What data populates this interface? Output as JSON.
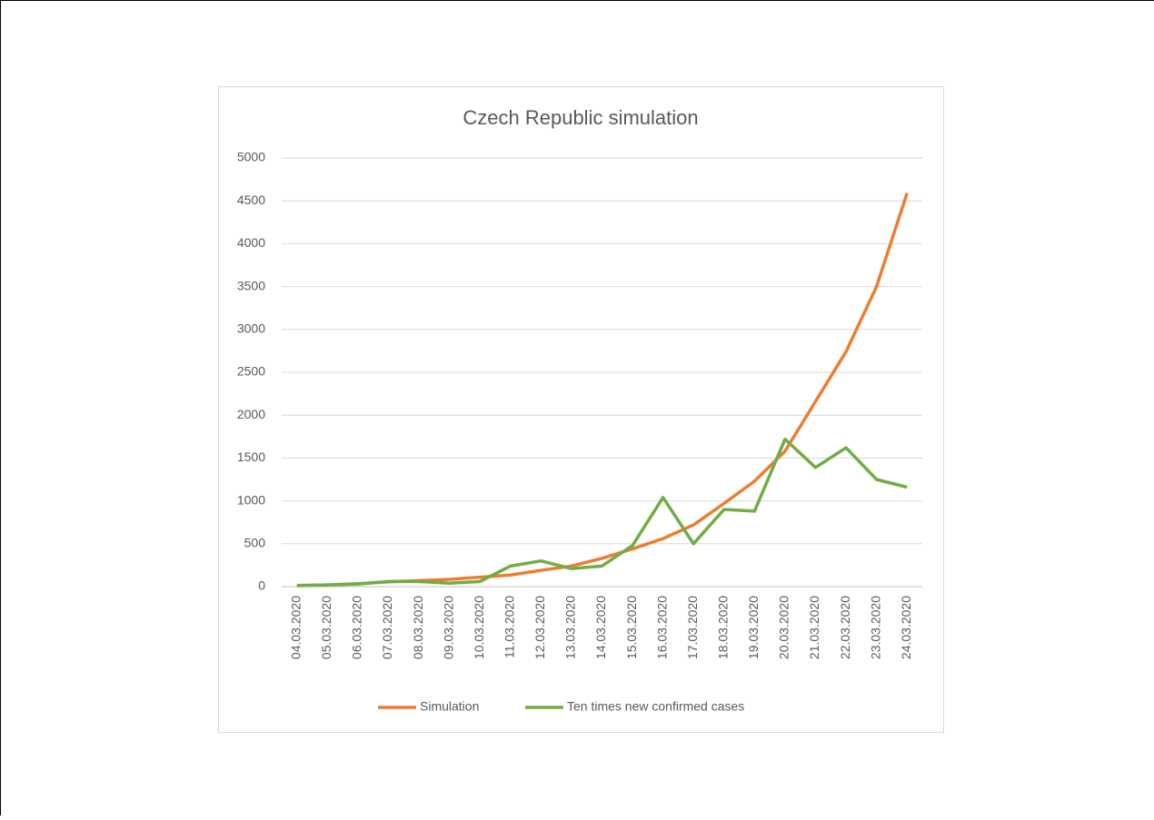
{
  "chart_data": {
    "type": "line",
    "title": "Czech Republic simulation",
    "categories": [
      "04.03.2020",
      "05.03.2020",
      "06.03.2020",
      "07.03.2020",
      "08.03.2020",
      "09.03.2020",
      "10.03.2020",
      "11.03.2020",
      "12.03.2020",
      "13.03.2020",
      "14.03.2020",
      "15.03.2020",
      "16.03.2020",
      "17.03.2020",
      "18.03.2020",
      "19.03.2020",
      "20.03.2020",
      "21.03.2020",
      "22.03.2020",
      "23.03.2020",
      "24.03.2020"
    ],
    "series": [
      {
        "name": "Simulation",
        "color": "#ed7d31",
        "values": [
          15,
          20,
          35,
          55,
          70,
          85,
          110,
          135,
          190,
          240,
          330,
          440,
          560,
          720,
          970,
          1230,
          1580,
          2160,
          2740,
          3500,
          4590
        ]
      },
      {
        "name": "Ten times new confirmed cases",
        "color": "#70ad47",
        "values": [
          10,
          20,
          30,
          60,
          60,
          40,
          60,
          240,
          300,
          210,
          240,
          480,
          1040,
          500,
          900,
          880,
          1720,
          1390,
          1620,
          1250,
          1160
        ]
      }
    ],
    "ylim": [
      0,
      5000
    ],
    "yticks": [
      0,
      500,
      1000,
      1500,
      2000,
      2500,
      3000,
      3500,
      4000,
      4500,
      5000
    ],
    "grid": true,
    "legend": "bottom"
  }
}
